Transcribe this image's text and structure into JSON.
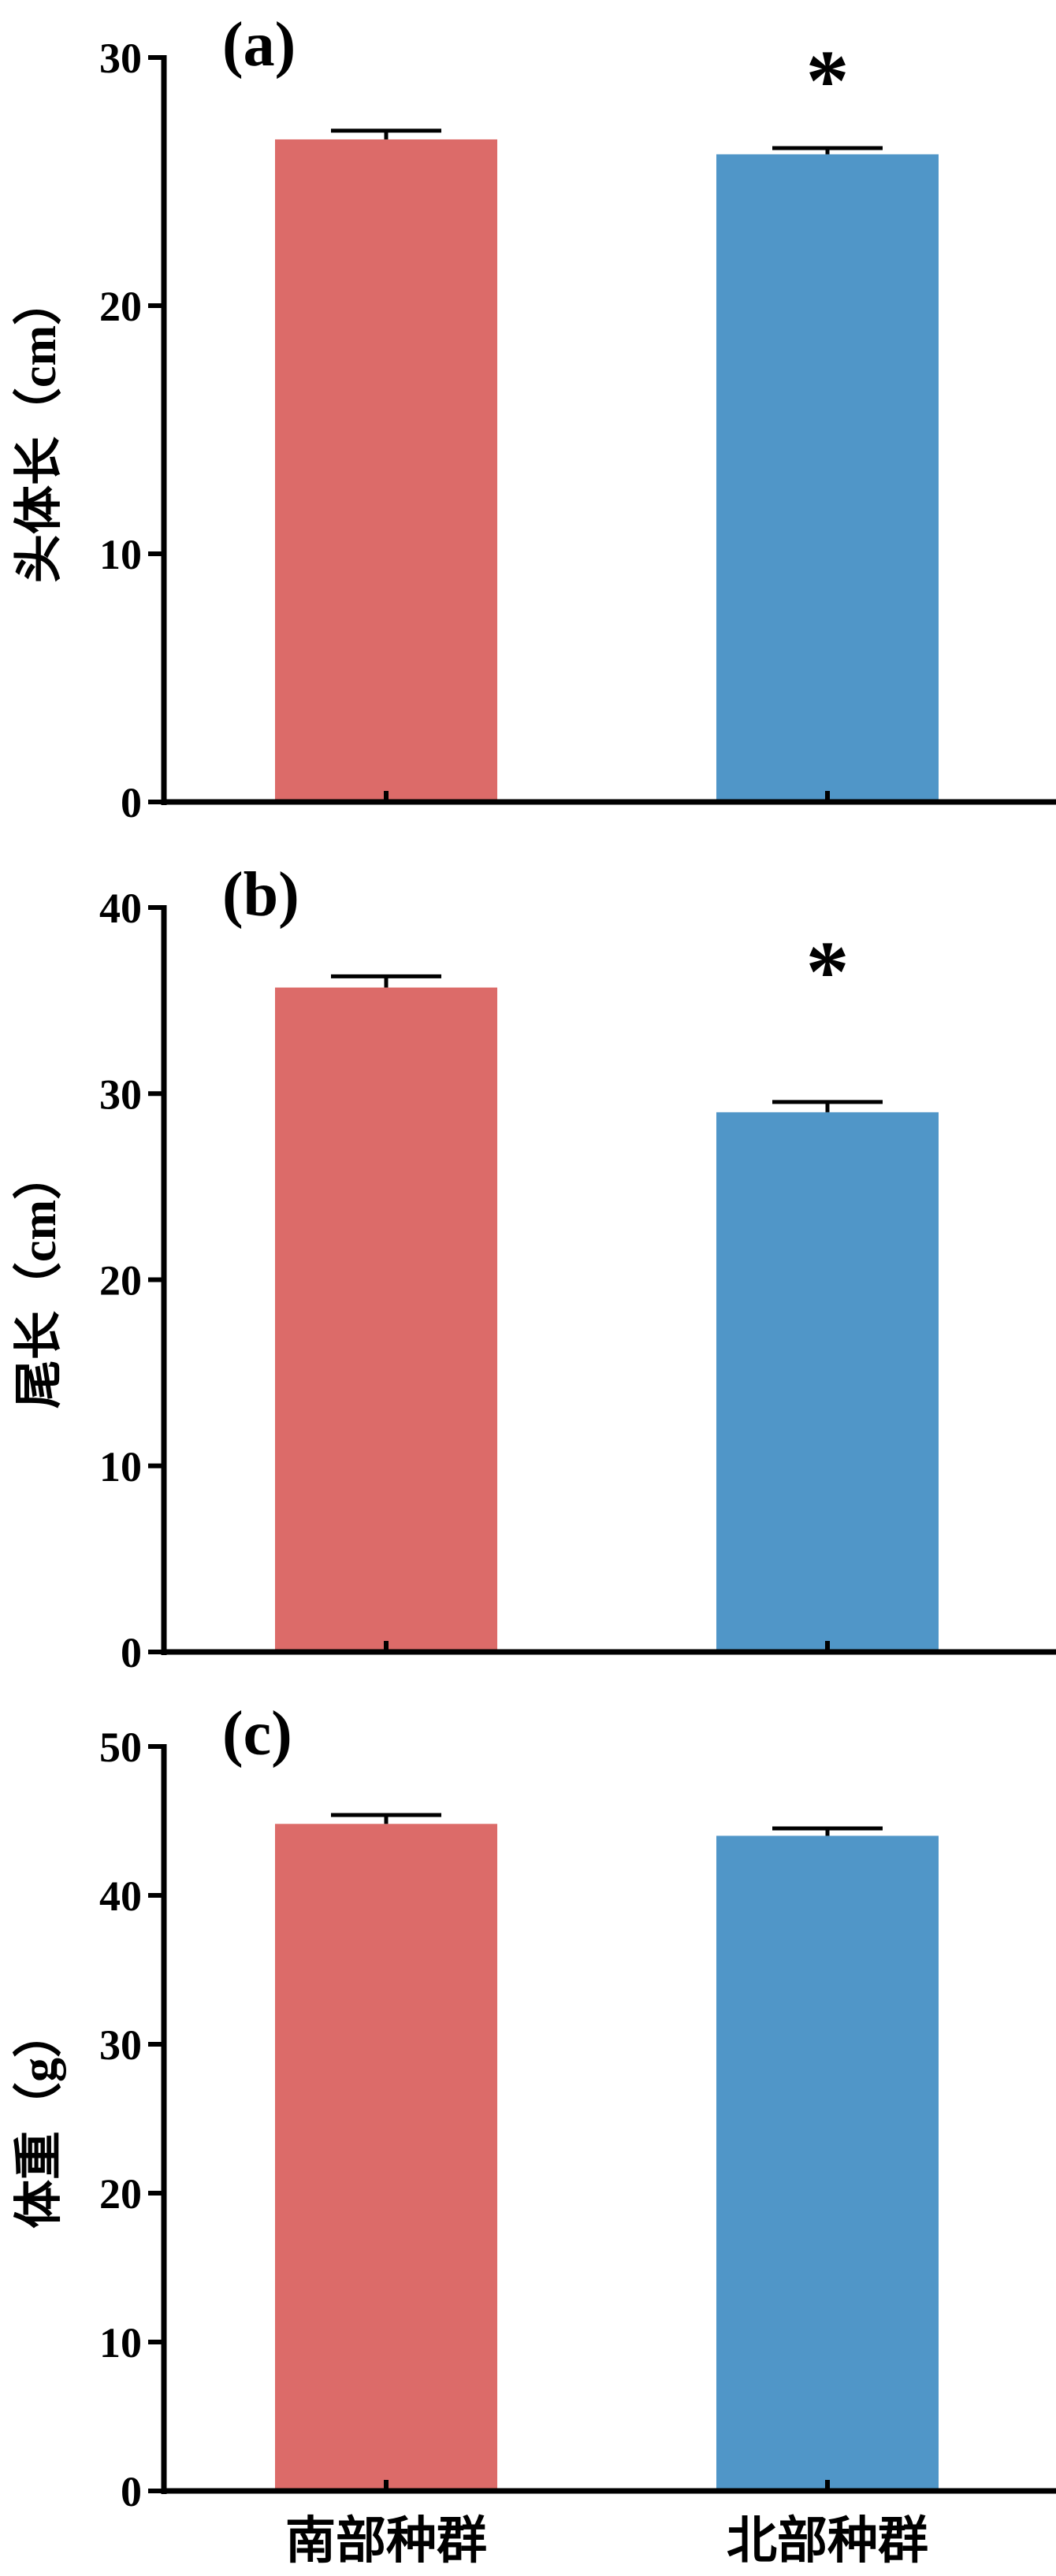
{
  "chart_data": [
    {
      "type": "bar",
      "panel_label": "(a)",
      "ylabel": "头体长（cm）",
      "categories": [
        "南部种群",
        "北部种群"
      ],
      "values": [
        26.7,
        26.1
      ],
      "errors": [
        0.35,
        0.25
      ],
      "ylim": [
        0,
        30
      ],
      "yticks": [
        0,
        10,
        20,
        30
      ],
      "significance": [
        "",
        "*"
      ],
      "bar_colors": [
        "#DC6B69",
        "#5096C8"
      ],
      "grid": false
    },
    {
      "type": "bar",
      "panel_label": "(b)",
      "ylabel": "尾长（cm）",
      "categories": [
        "南部种群",
        "北部种群"
      ],
      "values": [
        35.7,
        29.0
      ],
      "errors": [
        0.6,
        0.55
      ],
      "ylim": [
        0,
        40
      ],
      "yticks": [
        0,
        10,
        20,
        30,
        40
      ],
      "significance": [
        "",
        "*"
      ],
      "bar_colors": [
        "#DC6B69",
        "#5096C8"
      ],
      "grid": false
    },
    {
      "type": "bar",
      "panel_label": "(c)",
      "ylabel": "体重（g）",
      "categories": [
        "南部种群",
        "北部种群"
      ],
      "values": [
        44.8,
        44.0
      ],
      "errors": [
        0.6,
        0.5
      ],
      "ylim": [
        0,
        50
      ],
      "yticks": [
        0,
        10,
        20,
        30,
        40,
        50
      ],
      "significance": [
        "",
        ""
      ],
      "bar_colors": [
        "#DC6B69",
        "#5096C8"
      ],
      "grid": false,
      "show_category_labels": true
    }
  ]
}
